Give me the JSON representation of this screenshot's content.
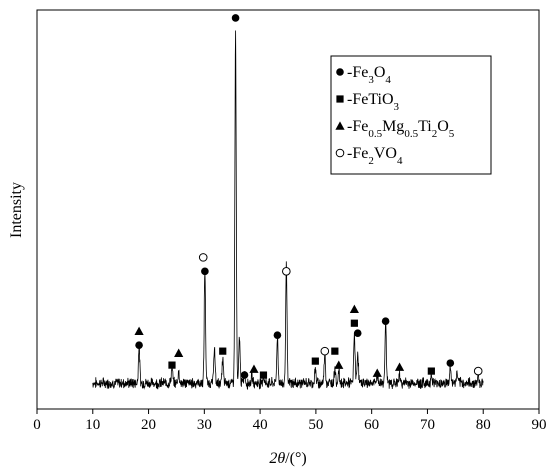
{
  "chart_data": {
    "type": "line",
    "xlabel_parts": {
      "theta": "2θ",
      "unit": "/(°)"
    },
    "ylabel": "Intensity",
    "xlim": [
      0,
      90
    ],
    "xticks": [
      0,
      10,
      20,
      30,
      40,
      50,
      60,
      70,
      80,
      90
    ],
    "ylim": [
      0,
      100
    ],
    "grid": false,
    "legend_position": "top-right",
    "legend": [
      {
        "marker": "filled-circle",
        "parts": [
          [
            "-Fe",
            ""
          ],
          [
            "3",
            "sub"
          ],
          [
            "O",
            ""
          ],
          [
            "4",
            "sub"
          ]
        ]
      },
      {
        "marker": "filled-square",
        "parts": [
          [
            "-FeTiO",
            ""
          ],
          [
            "3",
            "sub"
          ]
        ]
      },
      {
        "marker": "filled-triangle",
        "parts": [
          [
            "-Fe",
            ""
          ],
          [
            "0.5",
            "sub"
          ],
          [
            "Mg",
            ""
          ],
          [
            "0.5",
            "sub"
          ],
          [
            "Ti",
            ""
          ],
          [
            "2",
            "sub"
          ],
          [
            "O",
            ""
          ],
          [
            "5",
            "sub"
          ]
        ]
      },
      {
        "marker": "open-circle",
        "parts": [
          [
            "-Fe",
            ""
          ],
          [
            "2",
            "sub"
          ],
          [
            "VO",
            ""
          ],
          [
            "4",
            "sub"
          ]
        ]
      }
    ],
    "baseline": 6.5,
    "peaks": [
      {
        "x": 18.3,
        "y": 16.0
      },
      {
        "x": 24.2,
        "y": 10.5
      },
      {
        "x": 25.4,
        "y": 9.5
      },
      {
        "x": 30.1,
        "y": 35.0
      },
      {
        "x": 31.8,
        "y": 15.5
      },
      {
        "x": 33.3,
        "y": 12.5
      },
      {
        "x": 35.6,
        "y": 95.0
      },
      {
        "x": 36.3,
        "y": 18.0
      },
      {
        "x": 37.2,
        "y": 9.0
      },
      {
        "x": 38.5,
        "y": 8.5
      },
      {
        "x": 40.6,
        "y": 8.5
      },
      {
        "x": 43.1,
        "y": 18.0
      },
      {
        "x": 44.7,
        "y": 36.0
      },
      {
        "x": 49.9,
        "y": 10.0
      },
      {
        "x": 51.6,
        "y": 14.5
      },
      {
        "x": 53.4,
        "y": 10.5
      },
      {
        "x": 54.1,
        "y": 9.5
      },
      {
        "x": 56.9,
        "y": 19.0
      },
      {
        "x": 57.5,
        "y": 14.5
      },
      {
        "x": 61.0,
        "y": 8.5
      },
      {
        "x": 62.5,
        "y": 22.0
      },
      {
        "x": 65.0,
        "y": 8.5
      },
      {
        "x": 70.7,
        "y": 8.5
      },
      {
        "x": 74.1,
        "y": 10.5
      },
      {
        "x": 75.3,
        "y": 9.0
      },
      {
        "x": 79.1,
        "y": 8.5
      }
    ],
    "phase_markers": [
      {
        "x": 18.3,
        "y": 19.5,
        "phase": "filled-triangle"
      },
      {
        "x": 18.3,
        "y": 16.0,
        "phase": "filled-circle"
      },
      {
        "x": 24.2,
        "y": 11.0,
        "phase": "filled-square"
      },
      {
        "x": 25.4,
        "y": 14.0,
        "phase": "filled-triangle"
      },
      {
        "x": 29.8,
        "y": 38.0,
        "phase": "open-circle"
      },
      {
        "x": 30.1,
        "y": 34.5,
        "phase": "filled-circle"
      },
      {
        "x": 33.3,
        "y": 14.5,
        "phase": "filled-square"
      },
      {
        "x": 35.6,
        "y": 98.0,
        "phase": "filled-circle"
      },
      {
        "x": 37.2,
        "y": 8.5,
        "phase": "filled-circle"
      },
      {
        "x": 38.9,
        "y": 10.0,
        "phase": "filled-triangle"
      },
      {
        "x": 40.6,
        "y": 8.5,
        "phase": "filled-square"
      },
      {
        "x": 43.1,
        "y": 18.5,
        "phase": "filled-circle"
      },
      {
        "x": 44.7,
        "y": 34.5,
        "phase": "open-circle"
      },
      {
        "x": 49.9,
        "y": 12.0,
        "phase": "filled-square"
      },
      {
        "x": 51.6,
        "y": 14.5,
        "phase": "open-circle"
      },
      {
        "x": 53.4,
        "y": 14.5,
        "phase": "filled-square"
      },
      {
        "x": 54.1,
        "y": 11.0,
        "phase": "filled-triangle"
      },
      {
        "x": 56.9,
        "y": 25.0,
        "phase": "filled-triangle"
      },
      {
        "x": 56.9,
        "y": 21.5,
        "phase": "filled-square"
      },
      {
        "x": 57.5,
        "y": 19.0,
        "phase": "filled-circle"
      },
      {
        "x": 61.0,
        "y": 9.0,
        "phase": "filled-triangle"
      },
      {
        "x": 62.5,
        "y": 22.0,
        "phase": "filled-circle"
      },
      {
        "x": 65.0,
        "y": 10.5,
        "phase": "filled-triangle"
      },
      {
        "x": 70.7,
        "y": 9.5,
        "phase": "filled-square"
      },
      {
        "x": 74.1,
        "y": 11.5,
        "phase": "filled-circle"
      },
      {
        "x": 79.1,
        "y": 9.5,
        "phase": "open-circle"
      }
    ]
  }
}
